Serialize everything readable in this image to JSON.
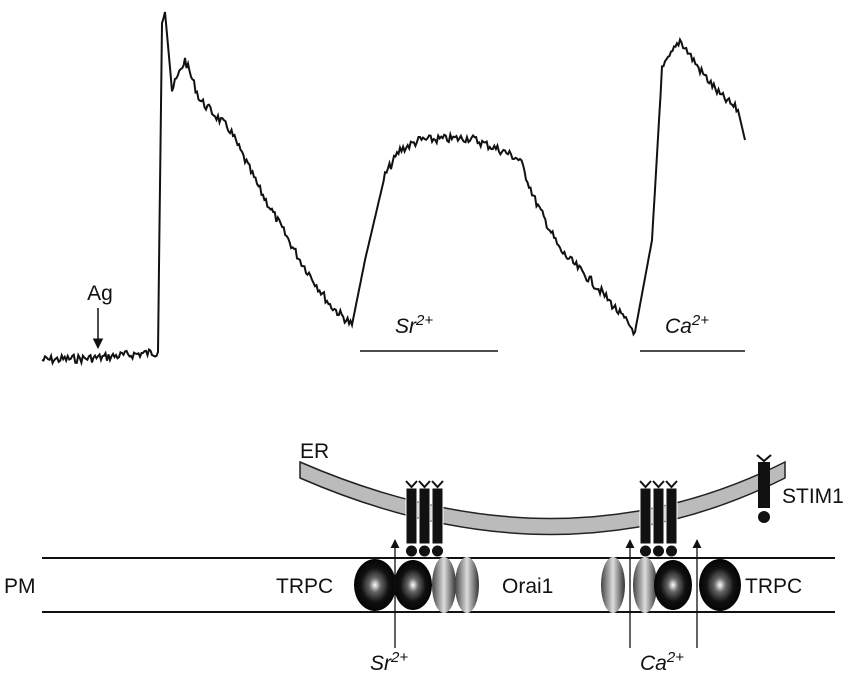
{
  "trace_labels": {
    "agonist": "Ag",
    "sr": {
      "ion": "Sr",
      "charge": "2+"
    },
    "ca": {
      "ion": "Ca",
      "charge": "2+"
    }
  },
  "diagram": {
    "er": "ER",
    "stim": "STIM1",
    "pm": "PM",
    "trpc_left": "TRPC",
    "orai": "Orai1",
    "trpc_right": "TRPC",
    "sr": {
      "ion": "Sr",
      "charge": "2+"
    },
    "ca": {
      "ion": "Ca",
      "charge": "2+"
    }
  }
}
